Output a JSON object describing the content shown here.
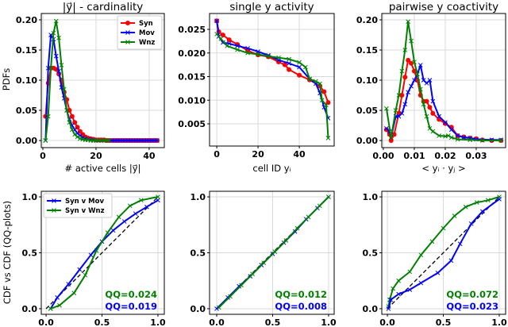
{
  "colors": {
    "Syn": "#ff0000",
    "Mov": "#0000ff",
    "Wnz": "#008000",
    "diag": "#000000",
    "grid": "#d9d9d9"
  },
  "ylabels": {
    "top": "PDFs",
    "bottom": "CDF vs CDF (QQ-plots)"
  },
  "chart_data": [
    {
      "type": "line",
      "title": "|y⃗| - cardinality",
      "xlabel": "# active cells |y⃗|",
      "ylabel": "PDFs",
      "xlim": [
        -0.6,
        45.7
      ],
      "ylim": [
        -0.0118,
        0.2105
      ],
      "xticks": [
        0,
        20,
        40
      ],
      "xtick_labels": [
        "0",
        "20",
        "40"
      ],
      "yticks": [
        0,
        0.05,
        0.1,
        0.15,
        0.2
      ],
      "ytick_labels": [
        "0.00",
        "0.05",
        "0.10",
        "0.15",
        "0.20"
      ],
      "legend": {
        "placement": "top-right",
        "entries": [
          "Syn",
          "Mov",
          "Wnz"
        ]
      },
      "series": [
        {
          "name": "Syn",
          "marker": "o",
          "x": [
            1,
            2,
            3,
            4,
            5,
            6,
            7,
            8,
            9,
            10,
            11,
            12,
            13,
            14,
            15,
            16,
            17,
            18,
            19,
            20,
            21,
            22,
            23,
            24,
            25,
            26,
            27,
            28,
            29,
            30,
            31,
            32,
            33,
            34,
            35,
            36,
            37,
            38,
            39,
            40,
            41,
            42,
            43
          ],
          "y": [
            0.04,
            0.095,
            0.12,
            0.12,
            0.118,
            0.11,
            0.1,
            0.08,
            0.068,
            0.05,
            0.04,
            0.03,
            0.022,
            0.015,
            0.01,
            0.006,
            0.004,
            0.003,
            0.002,
            0.001,
            0.001,
            0.001,
            0.001,
            0,
            0,
            0,
            0,
            0,
            0,
            0,
            0,
            0,
            0,
            0,
            0,
            0,
            0,
            0,
            0,
            0,
            0,
            0,
            0
          ]
        },
        {
          "name": "Mov",
          "marker": "x",
          "x": [
            1,
            2,
            3,
            4,
            5,
            6,
            7,
            8,
            9,
            10,
            11,
            12,
            13,
            14,
            15,
            16,
            17,
            18,
            19,
            20,
            21,
            22,
            23,
            24,
            25,
            26,
            27,
            28,
            29,
            30,
            31,
            32,
            33,
            34,
            35,
            36,
            37,
            38,
            39,
            40,
            41,
            42,
            43
          ],
          "y": [
            0,
            0.12,
            0.175,
            0.168,
            0.14,
            0.115,
            0.088,
            0.07,
            0.05,
            0.035,
            0.025,
            0.018,
            0.012,
            0.008,
            0.005,
            0.003,
            0.002,
            0.001,
            0.001,
            0,
            0,
            0,
            0,
            0,
            0,
            0,
            0,
            0,
            0,
            0,
            0,
            0,
            0,
            0,
            0,
            0,
            0,
            0,
            0,
            0,
            0,
            0,
            0
          ]
        },
        {
          "name": "Wnz",
          "marker": "x",
          "x": [
            1,
            2,
            3,
            4,
            5,
            6,
            7,
            8,
            9,
            10,
            11,
            12,
            13,
            14,
            15,
            16,
            17,
            18,
            19,
            20,
            21,
            22,
            23,
            24,
            25
          ],
          "y": [
            0,
            0.04,
            0.12,
            0.178,
            0.198,
            0.17,
            0.125,
            0.085,
            0.05,
            0.03,
            0.018,
            0.01,
            0.006,
            0.003,
            0.002,
            0.001,
            0.001,
            0,
            0,
            0,
            0,
            0,
            0,
            0,
            0
          ]
        }
      ]
    },
    {
      "type": "line",
      "title": "single y activity",
      "xlabel": "cell ID yᵢ",
      "xlim": [
        -3.5,
        56.9
      ],
      "ylim": [
        0.0003,
        0.02836
      ],
      "xticks": [
        0,
        20,
        40
      ],
      "xtick_labels": [
        "0",
        "20",
        "40"
      ],
      "yticks": [
        0.005,
        0.01,
        0.015,
        0.02,
        0.025
      ],
      "ytick_labels": [
        "0.005",
        "0.010",
        "0.015",
        "0.020",
        "0.025"
      ],
      "series": [
        {
          "name": "Syn",
          "marker": "o",
          "x": [
            0,
            1,
            3,
            6,
            10,
            15,
            20,
            25,
            30,
            33,
            35,
            40,
            45,
            50,
            52,
            54
          ],
          "y": [
            0.0268,
            0.0245,
            0.0238,
            0.0228,
            0.0218,
            0.0205,
            0.0196,
            0.0192,
            0.0181,
            0.0175,
            0.0165,
            0.0153,
            0.0143,
            0.013,
            0.0118,
            0.0095
          ]
        },
        {
          "name": "Mov",
          "marker": "x",
          "x": [
            0,
            1,
            3,
            6,
            10,
            15,
            20,
            25,
            30,
            35,
            40,
            45,
            48,
            50,
            52,
            54
          ],
          "y": [
            0.0268,
            0.0235,
            0.0222,
            0.022,
            0.0215,
            0.021,
            0.0203,
            0.0195,
            0.0185,
            0.0178,
            0.017,
            0.0145,
            0.0135,
            0.0115,
            0.0085,
            0.0062
          ]
        },
        {
          "name": "Wnz",
          "marker": "x",
          "x": [
            0,
            2,
            5,
            10,
            15,
            20,
            25,
            30,
            35,
            40,
            43,
            45,
            48,
            50,
            51,
            53,
            54
          ],
          "y": [
            0.024,
            0.023,
            0.0215,
            0.0207,
            0.02,
            0.0197,
            0.0193,
            0.019,
            0.0187,
            0.018,
            0.017,
            0.0145,
            0.014,
            0.0135,
            0.01,
            0.009,
            0.002
          ]
        }
      ]
    },
    {
      "type": "line",
      "title": "pairwise y coactivity",
      "xlabel": "< yᵢ · yⱼ >",
      "xlim": [
        -0.0005,
        0.0395
      ],
      "ylim": [
        -0.0118,
        0.2105
      ],
      "xticks": [
        0,
        0.01,
        0.02,
        0.03
      ],
      "xtick_labels": [
        "0.00",
        "0.01",
        "0.02",
        "0.03"
      ],
      "yticks": [
        0,
        0.05,
        0.1,
        0.15,
        0.2
      ],
      "ytick_labels": [
        "0.00",
        "0.05",
        "0.10",
        "0.15",
        "0.20"
      ],
      "series": [
        {
          "name": "Syn",
          "marker": "o",
          "x": [
            0.001,
            0.002,
            0.0025,
            0.0035,
            0.005,
            0.006,
            0.007,
            0.008,
            0.009,
            0.01,
            0.011,
            0.012,
            0.013,
            0.014,
            0.015,
            0.016,
            0.018,
            0.02,
            0.022,
            0.024,
            0.026,
            0.028,
            0.03,
            0.032,
            0.035,
            0.038
          ],
          "y": [
            0.018,
            0.01,
            0,
            0.01,
            0.045,
            0.075,
            0.105,
            0.133,
            0.128,
            0.115,
            0.1,
            0.075,
            0.065,
            0.065,
            0.055,
            0.045,
            0.035,
            0.028,
            0.022,
            0.008,
            0.006,
            0.004,
            0.003,
            0.001,
            0,
            0
          ]
        },
        {
          "name": "Mov",
          "marker": "x",
          "x": [
            0.001,
            0.002,
            0.0025,
            0.004,
            0.005,
            0.006,
            0.007,
            0.008,
            0.009,
            0.01,
            0.011,
            0.012,
            0.013,
            0.014,
            0.015,
            0.016,
            0.018,
            0.02,
            0.022,
            0.024,
            0.026,
            0.028,
            0.03,
            0.035,
            0.038
          ],
          "y": [
            0.02,
            0.015,
            0.005,
            0.04,
            0.04,
            0.045,
            0.06,
            0.08,
            0.09,
            0.1,
            0.11,
            0.125,
            0.1,
            0.095,
            0.1,
            0.065,
            0.04,
            0.03,
            0.018,
            0.008,
            0.005,
            0.004,
            0.002,
            0.001,
            0.001
          ]
        },
        {
          "name": "Wnz",
          "marker": "x",
          "x": [
            0.001,
            0.0025,
            0.004,
            0.005,
            0.006,
            0.007,
            0.008,
            0.009,
            0.01,
            0.011,
            0.012,
            0.013,
            0.014,
            0.015,
            0.016,
            0.018,
            0.02,
            0.021,
            0.022,
            0.024,
            0.028,
            0.032,
            0.038
          ],
          "y": [
            0.053,
            0.005,
            0.05,
            0.075,
            0.115,
            0.15,
            0.197,
            0.165,
            0.13,
            0.11,
            0.085,
            0.06,
            0.04,
            0.02,
            0.015,
            0.008,
            0.007,
            0.008,
            0.005,
            0.002,
            0.001,
            0,
            0
          ]
        }
      ]
    },
    {
      "type": "line",
      "title": "",
      "ylabel": "CDF vs CDF (QQ-plots)",
      "xlim": [
        -0.043,
        1.057
      ],
      "ylim": [
        -0.05,
        1.05
      ],
      "xticks": [
        0,
        0.5,
        1
      ],
      "xtick_labels": [
        "0.0",
        "0.5",
        "1.0"
      ],
      "yticks": [
        0,
        0.5,
        1
      ],
      "ytick_labels": [
        "0.0",
        "0.5",
        "1.0"
      ],
      "legend": {
        "placement": "top-left",
        "entries": [
          "Syn v Mov",
          "Syn v Wnz"
        ]
      },
      "annotations": [
        {
          "text": "QQ=0.024",
          "series": "Wnz"
        },
        {
          "text": "QQ=0.019",
          "series": "Mov"
        }
      ],
      "series": [
        {
          "name": "Mov",
          "marker": "x",
          "x": [
            0.04,
            0.1,
            0.2,
            0.3,
            0.4,
            0.5,
            0.6,
            0.7,
            0.8,
            0.9,
            1.0
          ],
          "y": [
            0,
            0.1,
            0.22,
            0.35,
            0.48,
            0.6,
            0.7,
            0.78,
            0.85,
            0.91,
            0.97
          ]
        },
        {
          "name": "Wnz",
          "marker": "x",
          "x": [
            0.04,
            0.12,
            0.25,
            0.35,
            0.45,
            0.55,
            0.65,
            0.75,
            0.85,
            1.0
          ],
          "y": [
            0,
            0.03,
            0.14,
            0.3,
            0.52,
            0.68,
            0.82,
            0.92,
            0.97,
            1.0
          ]
        }
      ]
    },
    {
      "type": "line",
      "title": "",
      "xlim": [
        -0.064,
        1.05
      ],
      "ylim": [
        -0.05,
        1.05
      ],
      "xticks": [
        0,
        0.5,
        1
      ],
      "xtick_labels": [
        "0.0",
        "0.5",
        "1.0"
      ],
      "yticks": [
        0,
        0.5,
        1
      ],
      "ytick_labels": [
        "0.0",
        "0.5",
        "1.0"
      ],
      "annotations": [
        {
          "text": "QQ=0.012",
          "series": "Wnz"
        },
        {
          "text": "QQ=0.008",
          "series": "Mov"
        }
      ],
      "series": [
        {
          "name": "Mov",
          "marker": "x",
          "x": [
            0,
            0.1,
            0.2,
            0.3,
            0.4,
            0.5,
            0.6,
            0.7,
            0.8,
            0.9,
            1.0
          ],
          "y": [
            0,
            0.1,
            0.2,
            0.29,
            0.39,
            0.49,
            0.59,
            0.69,
            0.8,
            0.9,
            1.0
          ]
        },
        {
          "name": "Wnz",
          "marker": "x",
          "x": [
            0.02,
            0.12,
            0.22,
            0.32,
            0.42,
            0.52,
            0.62,
            0.72,
            0.82,
            0.92,
            1.0
          ],
          "y": [
            0.01,
            0.11,
            0.21,
            0.31,
            0.41,
            0.51,
            0.61,
            0.72,
            0.82,
            0.92,
            1.0
          ]
        }
      ]
    },
    {
      "type": "line",
      "title": "",
      "xlim": [
        -0.05,
        1.057
      ],
      "ylim": [
        -0.05,
        1.05
      ],
      "xticks": [
        0,
        0.5,
        1
      ],
      "xtick_labels": [
        "0.0",
        "0.5",
        "1.0"
      ],
      "yticks": [
        0,
        0.5,
        1
      ],
      "ytick_labels": [
        "0.0",
        "0.5",
        "1.0"
      ],
      "annotations": [
        {
          "text": "QQ=0.072",
          "series": "Wnz"
        },
        {
          "text": "QQ=0.023",
          "series": "Mov"
        }
      ],
      "series": [
        {
          "name": "Wnz",
          "marker": "x",
          "x": [
            0.01,
            0.02,
            0.05,
            0.1,
            0.2,
            0.3,
            0.4,
            0.5,
            0.6,
            0.7,
            0.8,
            0.9,
            1.0
          ],
          "y": [
            0.02,
            0.08,
            0.18,
            0.25,
            0.33,
            0.48,
            0.6,
            0.72,
            0.83,
            0.91,
            0.95,
            0.97,
            1.0
          ]
        },
        {
          "name": "Mov",
          "marker": "x",
          "x": [
            0.01,
            0.03,
            0.1,
            0.2,
            0.3,
            0.45,
            0.57,
            0.65,
            0.75,
            0.85,
            1.0
          ],
          "y": [
            0,
            0.08,
            0.13,
            0.17,
            0.23,
            0.32,
            0.43,
            0.58,
            0.76,
            0.87,
            0.98
          ]
        }
      ]
    }
  ]
}
